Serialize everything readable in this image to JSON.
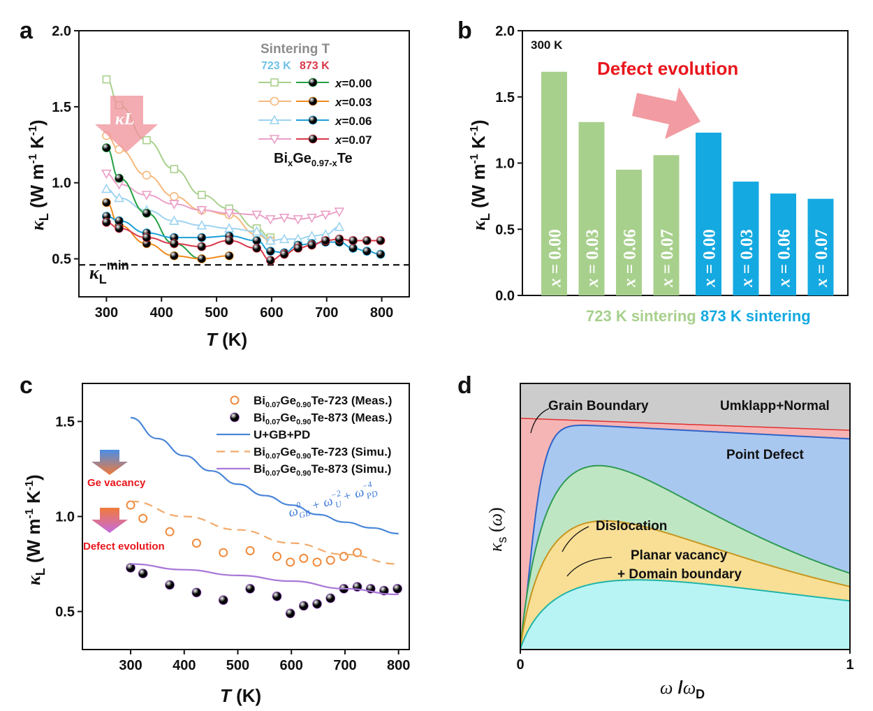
{
  "panels": {
    "a": "a",
    "b": "b",
    "c": "c",
    "d": "d"
  },
  "chart_data": [
    {
      "id": "a",
      "type": "line",
      "xlabel": "T (K)",
      "ylabel": "κL (W m-1 K-1)",
      "xlim": [
        250,
        850
      ],
      "ylim": [
        0.25,
        2.0
      ],
      "xticks": [
        300,
        400,
        500,
        600,
        700,
        800
      ],
      "yticks": [
        0.5,
        1.0,
        1.5,
        2.0
      ],
      "legend_title": "Sintering T",
      "legend_col_723": "723 K",
      "legend_col_873": "873 K",
      "formula": "BixGe0.97-xTe",
      "arrow_label": "κL",
      "min_label": "κLmin",
      "kmin": 0.46,
      "colors_723": [
        "#a8d08d",
        "#f5b97d",
        "#9dd3f0",
        "#eaa0c7"
      ],
      "colors_873": [
        "#22a042",
        "#ee8a1a",
        "#1a9fd6",
        "#d8384a"
      ],
      "series": [
        {
          "name": "x=0.00",
          "group": "723",
          "markers": "square",
          "x": [
            300,
            323,
            373,
            423,
            473,
            523,
            573,
            598
          ],
          "y": [
            1.68,
            1.51,
            1.28,
            1.09,
            0.92,
            0.83,
            0.7,
            0.64
          ]
        },
        {
          "name": "x=0.03",
          "group": "723",
          "markers": "circle",
          "x": [
            300,
            323,
            373,
            423,
            473,
            523,
            573,
            598
          ],
          "y": [
            1.31,
            1.22,
            1.05,
            0.91,
            0.82,
            0.79,
            0.66,
            0.62
          ]
        },
        {
          "name": "x=0.06",
          "group": "723",
          "markers": "triangle",
          "x": [
            300,
            323,
            373,
            423,
            473,
            523,
            573,
            598,
            623,
            648,
            673,
            698,
            723
          ],
          "y": [
            0.96,
            0.9,
            0.82,
            0.75,
            0.72,
            0.7,
            0.68,
            0.62,
            0.63,
            0.63,
            0.65,
            0.66,
            0.71
          ]
        },
        {
          "name": "x=0.07",
          "group": "723",
          "markers": "triangle-down",
          "x": [
            300,
            323,
            373,
            423,
            473,
            523,
            573,
            598,
            623,
            648,
            673,
            698,
            723
          ],
          "y": [
            1.06,
            0.99,
            0.92,
            0.86,
            0.82,
            0.8,
            0.79,
            0.76,
            0.77,
            0.76,
            0.77,
            0.79,
            0.81
          ]
        },
        {
          "name": "x=0.00",
          "group": "873",
          "markers": "circle",
          "x": [
            300,
            323,
            373,
            423,
            473
          ],
          "y": [
            1.23,
            1.03,
            0.8,
            0.6,
            0.5
          ]
        },
        {
          "name": "x=0.03",
          "group": "873",
          "markers": "circle",
          "x": [
            300,
            323,
            373,
            423,
            473,
            523
          ],
          "y": [
            0.87,
            0.72,
            0.6,
            0.52,
            0.5,
            0.52
          ]
        },
        {
          "name": "x=0.06",
          "group": "873",
          "markers": "circle",
          "x": [
            300,
            323,
            373,
            423,
            473,
            523,
            573,
            598,
            623,
            648,
            673,
            698,
            723,
            748,
            773,
            798
          ],
          "y": [
            0.78,
            0.75,
            0.67,
            0.64,
            0.64,
            0.65,
            0.62,
            0.55,
            0.54,
            0.59,
            0.6,
            0.61,
            0.61,
            0.57,
            0.55,
            0.53
          ]
        },
        {
          "name": "x=0.07",
          "group": "873",
          "markers": "circle",
          "x": [
            300,
            323,
            373,
            423,
            473,
            523,
            573,
            598,
            623,
            648,
            673,
            698,
            723,
            748,
            773,
            798
          ],
          "y": [
            0.74,
            0.7,
            0.64,
            0.6,
            0.58,
            0.62,
            0.57,
            0.49,
            0.53,
            0.57,
            0.59,
            0.62,
            0.63,
            0.62,
            0.62,
            0.62
          ]
        }
      ]
    },
    {
      "id": "b",
      "type": "bar",
      "ylabel": "κL (W m-1 K-1)",
      "ylim": [
        0,
        2.0
      ],
      "yticks": [
        0.0,
        0.5,
        1.0,
        1.5,
        2.0
      ],
      "condition_label": "300 K",
      "annotation": "Defect evolution",
      "groups": [
        {
          "label": "723 K sintering",
          "color": "#a8d08d",
          "categories": [
            "x = 0.00",
            "x = 0.03",
            "x = 0.06",
            "x = 0.07"
          ],
          "values": [
            1.69,
            1.31,
            0.95,
            1.06
          ]
        },
        {
          "label": "873 K sintering",
          "color": "#14a9e1",
          "categories": [
            "x = 0.00",
            "x = 0.03",
            "x = 0.06",
            "x = 0.07"
          ],
          "values": [
            1.23,
            0.86,
            0.77,
            0.73
          ]
        }
      ]
    },
    {
      "id": "c",
      "type": "scatter",
      "xlabel": "T (K)",
      "ylabel": "κL (W m-1 K-1)",
      "xlim": [
        210,
        820
      ],
      "ylim": [
        0.3,
        1.7
      ],
      "xticks": [
        300,
        400,
        500,
        600,
        700,
        800
      ],
      "yticks": [
        0.5,
        1.0,
        1.5
      ],
      "annotation_ge": "Ge vacancy",
      "annotation_defect": "Defect evolution",
      "formula": "ω0GB + ω-2U + ω-4PD",
      "legend": [
        "Bi0.07Ge0.90Te-723 (Meas.)",
        "Bi0.07Ge0.90Te-873 (Meas.)",
        "U+GB+PD",
        "Bi0.07Ge0.90Te-723 (Simu.)",
        "Bi0.07Ge0.90Te-873 (Simu.)"
      ],
      "series": [
        {
          "name": "Bi0.07Ge0.90Te-723 (Meas.)",
          "kind": "open-circle",
          "color": "#f08a3c",
          "x": [
            300,
            323,
            373,
            423,
            473,
            523,
            573,
            598,
            623,
            648,
            673,
            698,
            723
          ],
          "y": [
            1.06,
            0.99,
            0.92,
            0.86,
            0.81,
            0.82,
            0.79,
            0.76,
            0.78,
            0.76,
            0.77,
            0.79,
            0.81
          ]
        },
        {
          "name": "Bi0.07Ge0.90Te-873 (Meas.)",
          "kind": "sphere",
          "color": "#9b59d0",
          "x": [
            300,
            323,
            373,
            423,
            473,
            523,
            573,
            598,
            623,
            648,
            673,
            698,
            723,
            748,
            773,
            798
          ],
          "y": [
            0.73,
            0.7,
            0.64,
            0.6,
            0.56,
            0.62,
            0.58,
            0.49,
            0.53,
            0.54,
            0.57,
            0.62,
            0.63,
            0.62,
            0.61,
            0.62
          ]
        },
        {
          "name": "U+GB+PD",
          "kind": "line",
          "color": "#4a86d8",
          "x": [
            300,
            350,
            400,
            450,
            500,
            550,
            600,
            650,
            700,
            750,
            800
          ],
          "y": [
            1.52,
            1.41,
            1.32,
            1.24,
            1.17,
            1.11,
            1.06,
            1.01,
            0.97,
            0.94,
            0.91
          ]
        },
        {
          "name": "Bi0.07Ge0.90Te-723 (Simu.)",
          "kind": "dash",
          "color": "#f2a96a",
          "x": [
            300,
            400,
            500,
            600,
            700,
            800
          ],
          "y": [
            1.08,
            1.0,
            0.93,
            0.86,
            0.8,
            0.75
          ]
        },
        {
          "name": "Bi0.07Ge0.90Te-873 (Simu.)",
          "kind": "line",
          "color": "#a877d8",
          "x": [
            300,
            400,
            500,
            600,
            700,
            800
          ],
          "y": [
            0.75,
            0.72,
            0.69,
            0.66,
            0.62,
            0.59
          ]
        }
      ]
    },
    {
      "id": "d",
      "type": "area",
      "xlabel": "ω /ωD",
      "ylabel": "κs (ω)",
      "xticks": [
        "0",
        "1"
      ],
      "labels": {
        "grain_boundary": "Grain Boundary",
        "umklapp": "Umklapp+Normal",
        "point_defect": "Point Defect",
        "dislocation": "Dislocation",
        "planar_1": "Planar vacancy",
        "planar_2": "+ Domain boundary"
      },
      "colors": {
        "umklapp": "#cccccc",
        "grain": "#f5b5b5",
        "point": "#a9c8f0",
        "disloc": "#bfe6c3",
        "planar": "#f8df95",
        "base": "#b9f4f4"
      }
    }
  ]
}
